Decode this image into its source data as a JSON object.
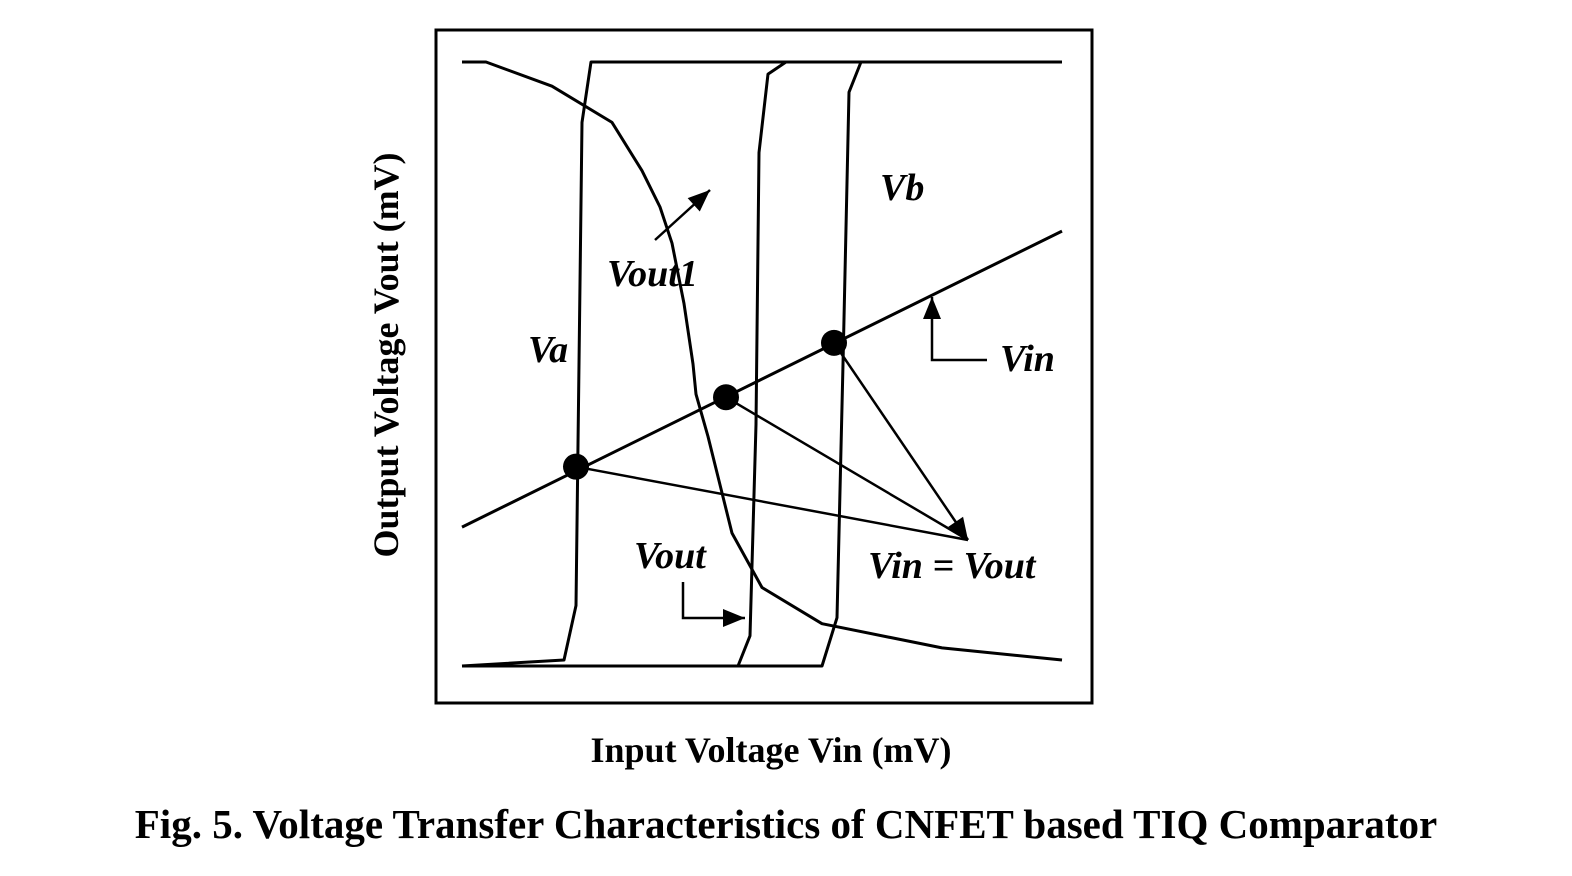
{
  "caption": "Fig. 5. Voltage Transfer Characteristics of CNFET based TIQ Comparator",
  "chart_data": {
    "type": "line",
    "title": "",
    "xlabel": "Input Voltage Vin (mV)",
    "ylabel": "Output Voltage Vout (mV)",
    "xlim": [
      0,
      1
    ],
    "ylim": [
      0,
      1
    ],
    "grid": false,
    "ticks": false,
    "series": [
      {
        "name": "Va",
        "points": [
          [
            0,
            0
          ],
          [
            0.17,
            0.01
          ],
          [
            0.19,
            0.1
          ],
          [
            0.195,
            0.5
          ],
          [
            0.2,
            0.9
          ],
          [
            0.215,
            1
          ],
          [
            1,
            1
          ]
        ]
      },
      {
        "name": "Vb",
        "points": [
          [
            0,
            0
          ],
          [
            0.6,
            0
          ],
          [
            0.625,
            0.08
          ],
          [
            0.635,
            0.5
          ],
          [
            0.645,
            0.95
          ],
          [
            0.665,
            1
          ],
          [
            1,
            1
          ]
        ]
      },
      {
        "name": "Vout",
        "points": [
          [
            0,
            0
          ],
          [
            0.46,
            0
          ],
          [
            0.48,
            0.05
          ],
          [
            0.49,
            0.4
          ],
          [
            0.495,
            0.85
          ],
          [
            0.51,
            0.98
          ],
          [
            0.54,
            1
          ]
        ]
      },
      {
        "name": "Vout1",
        "points": [
          [
            0,
            1
          ],
          [
            0.04,
            1
          ],
          [
            0.15,
            0.96
          ],
          [
            0.25,
            0.9
          ],
          [
            0.3,
            0.82
          ],
          [
            0.33,
            0.76
          ],
          [
            0.35,
            0.7
          ],
          [
            0.37,
            0.6
          ],
          [
            0.385,
            0.5
          ],
          [
            0.39,
            0.45
          ],
          [
            0.41,
            0.38
          ],
          [
            0.43,
            0.3
          ],
          [
            0.45,
            0.22
          ],
          [
            0.5,
            0.13
          ],
          [
            0.6,
            0.07
          ],
          [
            0.8,
            0.03
          ],
          [
            1,
            0.01
          ]
        ]
      },
      {
        "name": "Vin",
        "points": [
          [
            0,
            0.23
          ],
          [
            1,
            0.72
          ]
        ]
      }
    ],
    "intersections": [
      {
        "x": 0.19,
        "y": 0.33
      },
      {
        "x": 0.44,
        "y": 0.445
      },
      {
        "x": 0.62,
        "y": 0.535
      }
    ],
    "annotations": [
      "Va",
      "Vb",
      "Vout",
      "Vout1",
      "Vin",
      "Vin = Vout"
    ]
  }
}
